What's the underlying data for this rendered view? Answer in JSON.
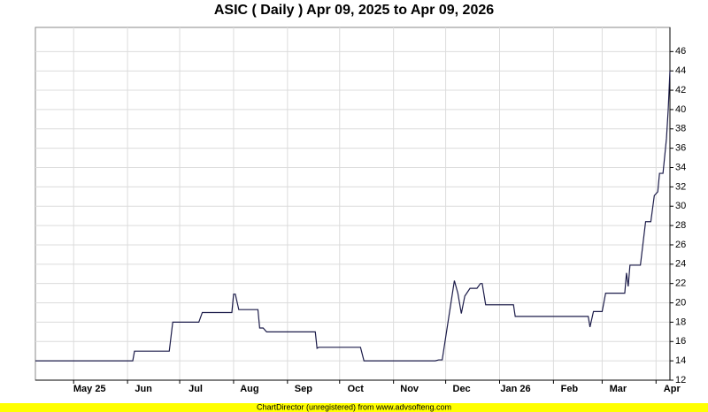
{
  "chart_data": {
    "type": "line",
    "title": "ASIC ( Daily ) Apr 09, 2025 to Apr 09, 2026",
    "footer": "ChartDirector (unregistered) from www.advsofteng.com",
    "x": [
      "2025-04-09",
      "2025-06-04",
      "2025-06-05",
      "2025-06-25",
      "2025-06-27",
      "2025-07-12",
      "2025-07-14",
      "2025-07-31",
      "2025-08-01",
      "2025-08-02",
      "2025-08-04",
      "2025-08-15",
      "2025-08-16",
      "2025-08-18",
      "2025-08-20",
      "2025-09-17",
      "2025-09-18",
      "2025-09-19",
      "2025-10-13",
      "2025-10-15",
      "2025-11-25",
      "2025-11-27",
      "2025-11-29",
      "2025-12-06",
      "2025-12-08",
      "2025-12-10",
      "2025-12-12",
      "2025-12-15",
      "2025-12-19",
      "2025-12-21",
      "2025-12-22",
      "2025-12-24",
      "2026-01-09",
      "2026-01-10",
      "2026-02-21",
      "2026-02-22",
      "2026-02-24",
      "2026-03-01",
      "2026-03-03",
      "2026-03-14",
      "2026-03-15",
      "2026-03-16",
      "2026-03-17",
      "2026-03-23",
      "2026-03-26",
      "2026-03-29",
      "2026-03-31",
      "2026-04-02",
      "2026-04-03",
      "2026-04-05",
      "2026-04-07",
      "2026-04-08",
      "2026-04-09"
    ],
    "series": [
      {
        "name": "ASIC",
        "color": "#1c1c4a",
        "values": [
          14,
          14,
          15,
          15,
          18,
          18,
          19,
          19,
          20.9,
          20.9,
          19.3,
          19.3,
          17.4,
          17.4,
          17,
          17,
          15.3,
          15.4,
          15.4,
          14,
          14,
          14.1,
          14.1,
          22.3,
          21,
          18.9,
          20.7,
          21.5,
          21.5,
          22,
          22,
          19.8,
          19.8,
          18.6,
          18.6,
          17.5,
          19.1,
          19.1,
          21,
          21,
          23.1,
          21.7,
          23.9,
          23.9,
          28.4,
          28.4,
          31.1,
          31.5,
          33.4,
          33.4,
          37,
          40,
          44
        ]
      }
    ],
    "xlim": [
      "2025-04-09",
      "2026-04-09"
    ],
    "xticks": [
      {
        "value": "2025-05-01",
        "label": "May 25"
      },
      {
        "value": "2025-06-01",
        "label": "Jun"
      },
      {
        "value": "2025-07-01",
        "label": "Jul"
      },
      {
        "value": "2025-08-01",
        "label": "Aug"
      },
      {
        "value": "2025-09-01",
        "label": "Sep"
      },
      {
        "value": "2025-10-01",
        "label": "Oct"
      },
      {
        "value": "2025-11-01",
        "label": "Nov"
      },
      {
        "value": "2025-12-01",
        "label": "Dec"
      },
      {
        "value": "2026-01-01",
        "label": "Jan 26"
      },
      {
        "value": "2026-02-01",
        "label": "Feb"
      },
      {
        "value": "2026-03-01",
        "label": "Mar"
      },
      {
        "value": "2026-04-01",
        "label": "Apr"
      }
    ],
    "ylim": [
      12,
      48.5
    ],
    "yticks": [
      12,
      14,
      16,
      18,
      20,
      22,
      24,
      26,
      28,
      30,
      32,
      34,
      36,
      38,
      40,
      42,
      44,
      46
    ],
    "grid": true
  }
}
